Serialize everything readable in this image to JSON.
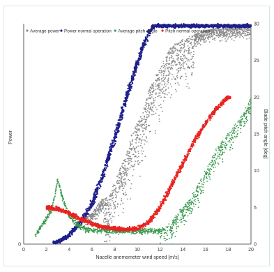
{
  "chart_data": {
    "type": "scatter",
    "xlabel": "Nacelle anemometer wind speed [m/s]",
    "ylabel_left": "Power",
    "ylabel_right": "Blade pitch angle [deg]",
    "x_ticks": [
      "0",
      "2",
      "4",
      "6",
      "8",
      "10",
      "12",
      "14",
      "16",
      "18",
      "20"
    ],
    "y_left_ticks": [
      "0"
    ],
    "y_right_ticks": [
      "0",
      "5",
      "10",
      "15",
      "20",
      "25",
      "30"
    ],
    "xlim": [
      0,
      20
    ],
    "ylim_left": [
      0,
      1.0
    ],
    "ylim_right": [
      0,
      30
    ],
    "grid": false,
    "legend_position": "top",
    "series": [
      {
        "name": "Average power",
        "axis": "left",
        "color": "#8c8c8c",
        "marker": "dot",
        "samples": [
          [
            6.0,
            0.14
          ],
          [
            6.8,
            0.2
          ],
          [
            7.5,
            0.22
          ],
          [
            8.0,
            0.28
          ],
          [
            8.5,
            0.35
          ],
          [
            9.0,
            0.4
          ],
          [
            9.5,
            0.5
          ],
          [
            10.0,
            0.55
          ],
          [
            10.5,
            0.6
          ],
          [
            11.0,
            0.7
          ],
          [
            11.5,
            0.75
          ],
          [
            12.0,
            0.8
          ],
          [
            12.5,
            0.85
          ],
          [
            13.0,
            0.9
          ],
          [
            14.0,
            0.93
          ],
          [
            15.0,
            0.95
          ],
          [
            16.0,
            0.97
          ],
          [
            17.0,
            0.98
          ],
          [
            18.0,
            0.98
          ],
          [
            19.0,
            0.99
          ],
          [
            20.0,
            0.99
          ]
        ]
      },
      {
        "name": "Power normal operation",
        "axis": "left",
        "color": "#1f1f8a",
        "marker": "dot",
        "samples": [
          [
            3.0,
            0.01
          ],
          [
            4.0,
            0.04
          ],
          [
            5.0,
            0.1
          ],
          [
            6.0,
            0.18
          ],
          [
            7.0,
            0.32
          ],
          [
            8.0,
            0.48
          ],
          [
            9.0,
            0.66
          ],
          [
            10.0,
            0.82
          ],
          [
            10.5,
            0.9
          ],
          [
            11.0,
            0.96
          ],
          [
            11.5,
            0.99
          ],
          [
            12.0,
            0.99
          ],
          [
            14.0,
            0.99
          ],
          [
            16.0,
            0.99
          ],
          [
            18.0,
            0.99
          ],
          [
            20.0,
            0.99
          ]
        ]
      },
      {
        "name": "Average pitch angle",
        "axis": "right",
        "color": "#3a9a4f",
        "marker": "dot",
        "samples": [
          [
            1.0,
            1.2
          ],
          [
            2.5,
            5.0
          ],
          [
            3.0,
            9.0
          ],
          [
            3.5,
            6.0
          ],
          [
            4.0,
            4.0
          ],
          [
            5.0,
            2.5
          ],
          [
            6.0,
            2.0
          ],
          [
            8.0,
            2.0
          ],
          [
            10.0,
            2.0
          ],
          [
            12.0,
            2.0
          ],
          [
            13.0,
            3.0
          ],
          [
            14.0,
            5.0
          ],
          [
            15.0,
            7.0
          ],
          [
            16.0,
            10.0
          ],
          [
            17.0,
            13.0
          ],
          [
            18.0,
            15.0
          ],
          [
            19.0,
            17.0
          ],
          [
            20.0,
            20.0
          ]
        ]
      },
      {
        "name": "Pitch normal operation",
        "axis": "right",
        "color": "#e8231f",
        "marker": "dot",
        "samples": [
          [
            2.0,
            5.0
          ],
          [
            3.0,
            4.8
          ],
          [
            4.0,
            4.2
          ],
          [
            5.0,
            3.4
          ],
          [
            6.0,
            2.8
          ],
          [
            7.0,
            2.3
          ],
          [
            8.0,
            2.1
          ],
          [
            9.0,
            2.0
          ],
          [
            10.0,
            2.1
          ],
          [
            11.0,
            3.0
          ],
          [
            12.0,
            5.0
          ],
          [
            13.0,
            8.0
          ],
          [
            14.0,
            11.0
          ],
          [
            15.0,
            14.0
          ],
          [
            16.0,
            16.5
          ],
          [
            17.0,
            18.5
          ],
          [
            18.0,
            20.0
          ]
        ]
      }
    ]
  }
}
